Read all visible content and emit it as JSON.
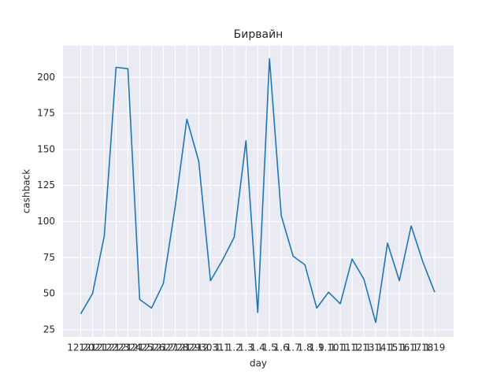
{
  "chart_data": {
    "type": "line",
    "title": "Бирвайн",
    "xlabel": "day",
    "ylabel": "cashback",
    "categories": [
      "12.20",
      "12.21",
      "12.22",
      "12.23",
      "12.24",
      "12.25",
      "12.26",
      "12.27",
      "12.28",
      "12.29",
      "12.30",
      "12.31",
      "1.1",
      "1.2",
      "1.3",
      "1.4",
      "1.5",
      "1.6",
      "1.7",
      "1.8",
      "1.9",
      "1.10",
      "1.11",
      "1.12",
      "1.13",
      "1.14",
      "1.15",
      "1.16",
      "1.17",
      "1.18",
      "1.19"
    ],
    "series": [
      {
        "name": "cashback",
        "color": "#1f77b4",
        "values": [
          36,
          50,
          90,
          207,
          206,
          46,
          40,
          57,
          110,
          171,
          142,
          59,
          73,
          89,
          156,
          37,
          213,
          104,
          76,
          70,
          40,
          51,
          43,
          74,
          60,
          30,
          85,
          59,
          97,
          72,
          51
        ]
      }
    ],
    "ylim": [
      20,
      222
    ],
    "yticks": [
      25,
      50,
      75,
      100,
      125,
      150,
      175,
      200
    ],
    "grid": true
  }
}
